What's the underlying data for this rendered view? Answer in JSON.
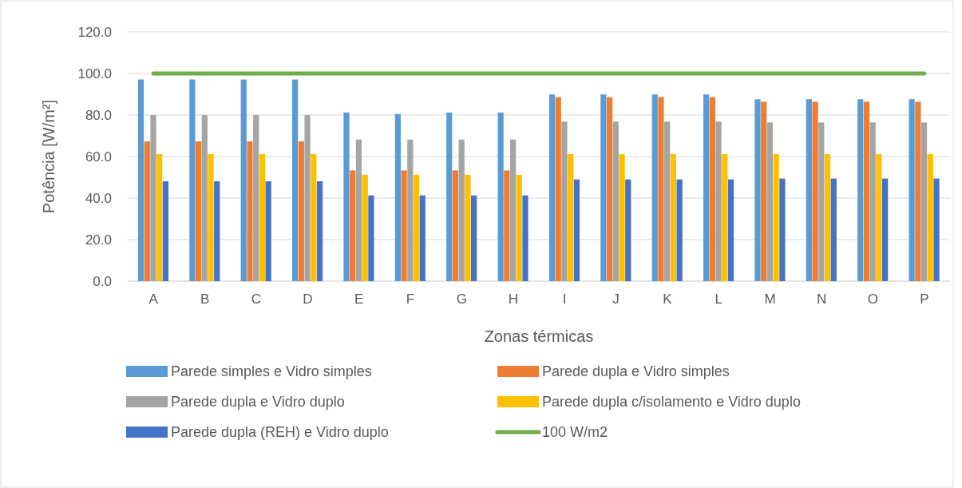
{
  "chart_data": {
    "type": "bar",
    "xlabel": "Zonas térmicas",
    "ylabel": "Potência [W/m²]",
    "categories": [
      "A",
      "B",
      "C",
      "D",
      "E",
      "F",
      "G",
      "H",
      "I",
      "J",
      "K",
      "L",
      "M",
      "N",
      "O",
      "P"
    ],
    "series": [
      {
        "name": "Parede simples e Vidro simples",
        "color": "#5b9bd5",
        "values": [
          97.1,
          97.1,
          97.1,
          97.1,
          81.2,
          80.5,
          81.2,
          81.2,
          89.9,
          89.9,
          89.9,
          89.9,
          87.6,
          87.6,
          87.6,
          87.6
        ]
      },
      {
        "name": "Parede dupla e Vidro simples",
        "color": "#ed7d31",
        "values": [
          67.3,
          67.3,
          67.3,
          67.3,
          53.3,
          53.3,
          53.3,
          53.3,
          88.6,
          88.6,
          88.6,
          88.6,
          86.4,
          86.4,
          86.4,
          86.4
        ]
      },
      {
        "name": "Parede dupla e Vidro duplo",
        "color": "#a5a5a5",
        "values": [
          80,
          80,
          80,
          80,
          68.2,
          68.2,
          68.2,
          68.2,
          76.8,
          76.8,
          76.8,
          76.8,
          76.4,
          76.4,
          76.4,
          76.4
        ]
      },
      {
        "name": "Parede dupla c/isolamento e Vidro duplo",
        "color": "#ffc000",
        "values": [
          61.2,
          61.2,
          61.2,
          61.2,
          51.2,
          51.2,
          51.2,
          51.2,
          61.2,
          61.2,
          61.2,
          61.2,
          61.2,
          61.2,
          61.2,
          61.2
        ]
      },
      {
        "name": "Parede dupla (REH) e Vidro duplo",
        "color": "#4472c4",
        "values": [
          48.1,
          48.1,
          48.1,
          48.1,
          41.3,
          41.3,
          41.3,
          41.3,
          49,
          49,
          49,
          49,
          49.4,
          49.4,
          49.4,
          49.4
        ]
      },
      {
        "name": "100 W/m2",
        "type": "line",
        "color": "#70ad47",
        "values": [
          100,
          100,
          100,
          100,
          100,
          100,
          100,
          100,
          100,
          100,
          100,
          100,
          100,
          100,
          100,
          100
        ]
      }
    ],
    "ylim": [
      0,
      120
    ],
    "yticks": [
      {
        "value": 0,
        "label": "0.0"
      },
      {
        "value": 20,
        "label": "20.0"
      },
      {
        "value": 40,
        "label": "40.0"
      },
      {
        "value": 60,
        "label": "60.0"
      },
      {
        "value": 80,
        "label": "80.0"
      },
      {
        "value": 100,
        "label": "100.0"
      },
      {
        "value": 120,
        "label": "120.0"
      }
    ],
    "grid": "y",
    "legend": "bottom",
    "line_style": "solid",
    "marker": "none"
  }
}
